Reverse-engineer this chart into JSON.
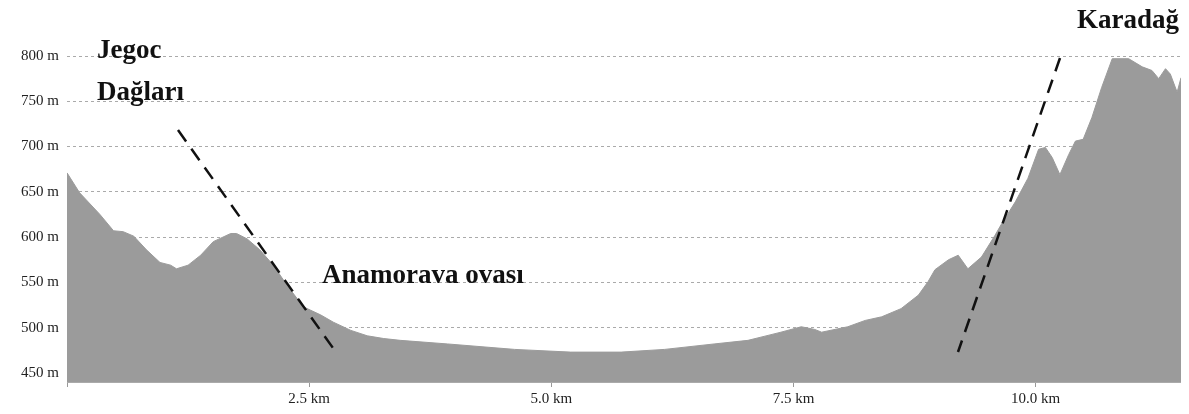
{
  "chart_data": {
    "type": "area",
    "x": [
      0,
      0.13,
      0.2,
      0.34,
      0.48,
      0.58,
      0.69,
      0.82,
      0.96,
      1.07,
      1.13,
      1.25,
      1.38,
      1.51,
      1.69,
      1.75,
      1.86,
      1.99,
      2.13,
      2.27,
      2.44,
      2.62,
      2.75,
      2.93,
      3.1,
      3.27,
      3.44,
      3.93,
      4.62,
      5.2,
      5.72,
      6.17,
      6.68,
      7.03,
      7.37,
      7.58,
      7.72,
      7.79,
      8.06,
      8.24,
      8.41,
      8.61,
      8.79,
      8.89,
      8.96,
      9.1,
      9.2,
      9.3,
      9.44,
      9.58,
      9.65,
      9.79,
      9.92,
      10.03,
      10.1,
      10.17,
      10.25,
      10.34,
      10.41,
      10.49,
      10.58,
      10.68,
      10.79,
      10.96,
      11.1,
      11.2,
      11.27,
      11.34,
      11.39,
      11.46,
      11.5
    ],
    "values": [
      671,
      649,
      641,
      625,
      607,
      606,
      601,
      586,
      572,
      569,
      565,
      569,
      580,
      595,
      604,
      604,
      598,
      586,
      569,
      547,
      523,
      514,
      506,
      497,
      491,
      488,
      486,
      482,
      476,
      473,
      473,
      476,
      482,
      486,
      495,
      501,
      498,
      495,
      501,
      508,
      512,
      521,
      536,
      551,
      564,
      575,
      580,
      565,
      578,
      602,
      615,
      639,
      665,
      697,
      699,
      688,
      669,
      691,
      706,
      708,
      732,
      765,
      797,
      797,
      788,
      784,
      775,
      786,
      780,
      760,
      776
    ],
    "color": "#9b9b9b",
    "xlim": [
      0,
      11.5
    ],
    "xticks": [
      {
        "value": 0,
        "label": null
      },
      {
        "value": 2.5,
        "label": "2.5 km"
      },
      {
        "value": 5,
        "label": "5.0 km"
      },
      {
        "value": 7.5,
        "label": "7.5 km"
      },
      {
        "value": 10,
        "label": "10.0 km"
      }
    ],
    "ylim": [
      440,
      800
    ],
    "yticks": [
      {
        "value": 450,
        "label": "450 m"
      },
      {
        "value": 500,
        "label": "500 m"
      },
      {
        "value": 550,
        "label": "550 m"
      },
      {
        "value": 600,
        "label": "600 m"
      },
      {
        "value": 650,
        "label": "650 m"
      },
      {
        "value": 700,
        "label": "700 m"
      },
      {
        "value": 750,
        "label": "750 m"
      },
      {
        "value": 800,
        "label": "800 m"
      }
    ],
    "grid": "y",
    "annotations": [
      "Jegoc Dağları",
      "Anamorava ovası",
      "Karadağ"
    ]
  }
}
